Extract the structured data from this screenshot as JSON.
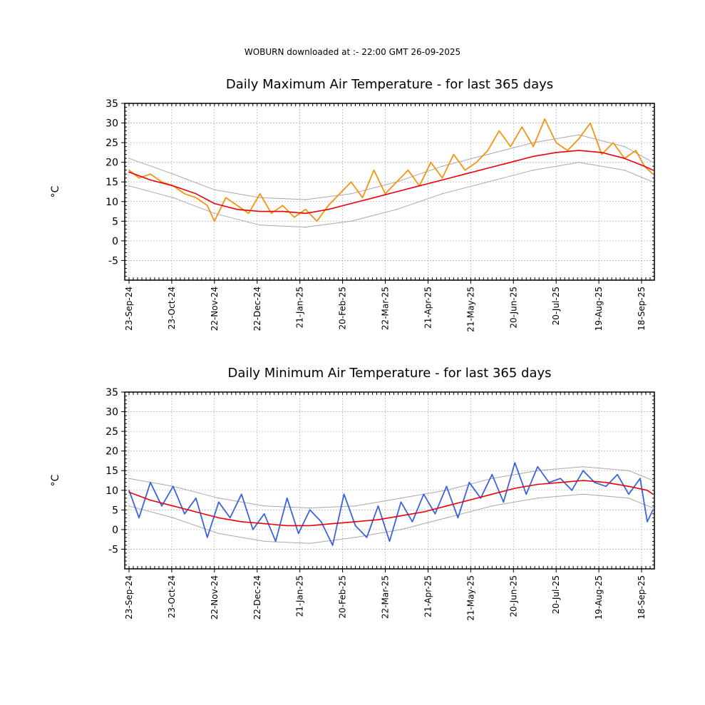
{
  "header": "WOBURN downloaded at :- 22:00 GMT 26-09-2025",
  "chart_data": [
    {
      "type": "line",
      "title": "Daily Maximum Air Temperature - for last 365 days",
      "ylabel": "°C",
      "xlabel": "",
      "ylim": [
        -10,
        35
      ],
      "yticks": [
        -5,
        0,
        5,
        10,
        15,
        20,
        25,
        30,
        35
      ],
      "xlim": [
        "2024-09-20",
        "2025-09-27"
      ],
      "xticks": [
        "23-Sep-24",
        "23-Oct-24",
        "22-Nov-24",
        "22-Dec-24",
        "21-Jan-25",
        "20-Feb-25",
        "22-Mar-25",
        "21-Apr-25",
        "21-May-25",
        "20-Jun-25",
        "20-Jul-25",
        "19-Aug-25",
        "18-Sep-25"
      ],
      "grid": true,
      "colors": {
        "observed": "#f39411",
        "mean": "#e8000b",
        "envelope": "#a8a8a8"
      },
      "series": [
        {
          "role": "observed",
          "x": [
            "2024-09-23",
            "2024-09-30",
            "2024-10-08",
            "2024-10-16",
            "2024-10-24",
            "2024-11-01",
            "2024-11-09",
            "2024-11-17",
            "2024-11-22",
            "2024-11-30",
            "2024-12-08",
            "2024-12-16",
            "2024-12-24",
            "2025-01-01",
            "2025-01-09",
            "2025-01-17",
            "2025-01-25",
            "2025-02-02",
            "2025-02-10",
            "2025-02-18",
            "2025-02-26",
            "2025-03-06",
            "2025-03-14",
            "2025-03-22",
            "2025-03-30",
            "2025-04-07",
            "2025-04-15",
            "2025-04-23",
            "2025-05-01",
            "2025-05-09",
            "2025-05-17",
            "2025-05-25",
            "2025-06-02",
            "2025-06-10",
            "2025-06-18",
            "2025-06-26",
            "2025-07-04",
            "2025-07-12",
            "2025-07-20",
            "2025-07-28",
            "2025-08-05",
            "2025-08-13",
            "2025-08-21",
            "2025-08-29",
            "2025-09-06",
            "2025-09-14",
            "2025-09-20",
            "2025-09-26"
          ],
          "y": [
            18,
            16,
            17,
            15,
            14,
            12,
            11,
            9,
            5,
            11,
            9,
            7,
            12,
            7,
            9,
            6,
            8,
            5,
            9,
            12,
            15,
            11,
            18,
            12,
            15,
            18,
            14,
            20,
            16,
            22,
            18,
            20,
            23,
            28,
            24,
            29,
            24,
            31,
            25,
            23,
            26,
            30,
            22,
            25,
            21,
            23,
            19,
            17
          ]
        },
        {
          "role": "mean",
          "x": [
            "2024-09-23",
            "2024-10-08",
            "2024-10-24",
            "2024-11-09",
            "2024-11-22",
            "2024-12-08",
            "2024-12-24",
            "2025-01-09",
            "2025-01-25",
            "2025-02-10",
            "2025-02-26",
            "2025-03-14",
            "2025-03-30",
            "2025-04-15",
            "2025-05-01",
            "2025-05-17",
            "2025-06-02",
            "2025-06-18",
            "2025-07-04",
            "2025-07-20",
            "2025-08-05",
            "2025-08-21",
            "2025-09-06",
            "2025-09-20",
            "2025-09-26"
          ],
          "y": [
            17.5,
            15.5,
            14,
            12,
            9.5,
            8,
            7.5,
            7.5,
            7,
            8,
            9.5,
            11,
            12.5,
            14,
            15.5,
            17,
            18.5,
            20,
            21.5,
            22.5,
            23,
            22.5,
            21,
            19,
            18
          ]
        },
        {
          "role": "envelope-upper",
          "x": [
            "2024-09-23",
            "2024-10-24",
            "2024-11-22",
            "2024-12-24",
            "2025-01-25",
            "2025-02-26",
            "2025-03-30",
            "2025-05-01",
            "2025-06-02",
            "2025-07-04",
            "2025-08-05",
            "2025-09-06",
            "2025-09-26"
          ],
          "y": [
            21,
            17,
            13,
            11,
            10.5,
            12,
            15,
            19,
            22,
            25,
            27,
            24,
            20
          ]
        },
        {
          "role": "envelope-lower",
          "x": [
            "2024-09-23",
            "2024-10-24",
            "2024-11-22",
            "2024-12-24",
            "2025-01-25",
            "2025-02-26",
            "2025-03-30",
            "2025-05-01",
            "2025-06-02",
            "2025-07-04",
            "2025-08-05",
            "2025-09-06",
            "2025-09-26"
          ],
          "y": [
            14,
            11,
            7,
            4,
            3.5,
            5,
            8,
            12,
            15,
            18,
            20,
            18,
            15
          ]
        }
      ]
    },
    {
      "type": "line",
      "title": "Daily Minimum Air Temperature - for last 365 days",
      "ylabel": "°C",
      "xlabel": "",
      "ylim": [
        -10,
        35
      ],
      "yticks": [
        -5,
        0,
        5,
        10,
        15,
        20,
        25,
        30,
        35
      ],
      "xlim": [
        "2024-09-20",
        "2025-09-27"
      ],
      "xticks": [
        "23-Sep-24",
        "23-Oct-24",
        "22-Nov-24",
        "22-Dec-24",
        "21-Jan-25",
        "20-Feb-25",
        "22-Mar-25",
        "21-Apr-25",
        "21-May-25",
        "20-Jun-25",
        "20-Jul-25",
        "19-Aug-25",
        "18-Sep-25"
      ],
      "grid": true,
      "colors": {
        "observed": "#3a64d8",
        "mean": "#e8000b",
        "envelope": "#a8a8a8"
      },
      "series": [
        {
          "role": "observed",
          "x": [
            "2024-09-23",
            "2024-09-30",
            "2024-10-08",
            "2024-10-16",
            "2024-10-24",
            "2024-11-01",
            "2024-11-09",
            "2024-11-17",
            "2024-11-25",
            "2024-12-03",
            "2024-12-11",
            "2024-12-19",
            "2024-12-27",
            "2025-01-04",
            "2025-01-12",
            "2025-01-20",
            "2025-01-28",
            "2025-02-05",
            "2025-02-13",
            "2025-02-21",
            "2025-03-01",
            "2025-03-09",
            "2025-03-17",
            "2025-03-25",
            "2025-04-02",
            "2025-04-10",
            "2025-04-18",
            "2025-04-26",
            "2025-05-04",
            "2025-05-12",
            "2025-05-20",
            "2025-05-28",
            "2025-06-05",
            "2025-06-13",
            "2025-06-21",
            "2025-06-29",
            "2025-07-07",
            "2025-07-15",
            "2025-07-23",
            "2025-07-31",
            "2025-08-08",
            "2025-08-16",
            "2025-08-24",
            "2025-09-01",
            "2025-09-09",
            "2025-09-17",
            "2025-09-22",
            "2025-09-26"
          ],
          "y": [
            10,
            3,
            12,
            6,
            11,
            4,
            8,
            -2,
            7,
            3,
            9,
            0,
            4,
            -3,
            8,
            -1,
            5,
            2,
            -4,
            9,
            1,
            -2,
            6,
            -3,
            7,
            2,
            9,
            4,
            11,
            3,
            12,
            8,
            14,
            7,
            17,
            9,
            16,
            12,
            13,
            10,
            15,
            12,
            11,
            14,
            9,
            13,
            2,
            5
          ]
        },
        {
          "role": "mean",
          "x": [
            "2024-09-23",
            "2024-10-08",
            "2024-10-24",
            "2024-11-09",
            "2024-11-25",
            "2024-12-11",
            "2024-12-27",
            "2025-01-12",
            "2025-01-28",
            "2025-02-13",
            "2025-03-01",
            "2025-03-17",
            "2025-04-02",
            "2025-04-18",
            "2025-05-04",
            "2025-05-20",
            "2025-06-05",
            "2025-06-21",
            "2025-07-07",
            "2025-07-23",
            "2025-08-08",
            "2025-08-24",
            "2025-09-09",
            "2025-09-22",
            "2025-09-26"
          ],
          "y": [
            9.5,
            7.5,
            6,
            4.5,
            3,
            2,
            1.5,
            1,
            1,
            1.5,
            2,
            2.5,
            3.5,
            4.5,
            6,
            7.5,
            9,
            10.5,
            11.5,
            12,
            12.5,
            12,
            11,
            10,
            9
          ]
        },
        {
          "role": "envelope-upper",
          "x": [
            "2024-09-23",
            "2024-10-24",
            "2024-11-25",
            "2024-12-27",
            "2025-01-28",
            "2025-03-01",
            "2025-04-02",
            "2025-05-04",
            "2025-06-05",
            "2025-07-07",
            "2025-08-08",
            "2025-09-09",
            "2025-09-26"
          ],
          "y": [
            13,
            11,
            8,
            6,
            5.5,
            6,
            8,
            10,
            13,
            15,
            16,
            15,
            12.5
          ]
        },
        {
          "role": "envelope-lower",
          "x": [
            "2024-09-23",
            "2024-10-24",
            "2024-11-25",
            "2024-12-27",
            "2025-01-28",
            "2025-03-01",
            "2025-04-02",
            "2025-05-04",
            "2025-06-05",
            "2025-07-07",
            "2025-08-08",
            "2025-09-09",
            "2025-09-26"
          ],
          "y": [
            6,
            3,
            -1,
            -3,
            -3.5,
            -2,
            0,
            3,
            6,
            8,
            9,
            8,
            5.5
          ]
        }
      ]
    }
  ]
}
